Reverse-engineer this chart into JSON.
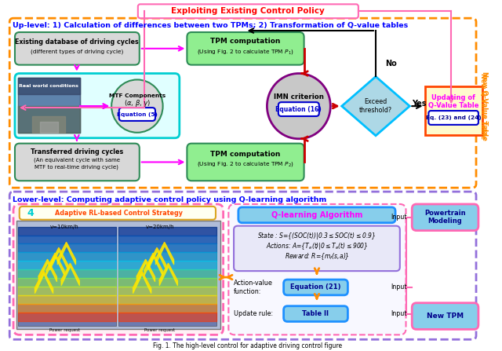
{
  "title": "Fig. 1. The high-level control for adaptive driving control figure",
  "top_banner_text": "Exploiting Existing Control Policy",
  "uplevel_title": "Up-level: 1) Calculation of differences between two TPMs; 2) Transformation of Q-value tables",
  "lowerlevel_title": "Lower-level: Computing adaptive control policy using Q-learning algorithm",
  "outer_box_color": "#FF8C00",
  "outer_box2_color": "#9370DB",
  "right_label": "New Q-Value Table",
  "right_label_color": "#FF8C00",
  "bg_color": "#FFFFFF"
}
